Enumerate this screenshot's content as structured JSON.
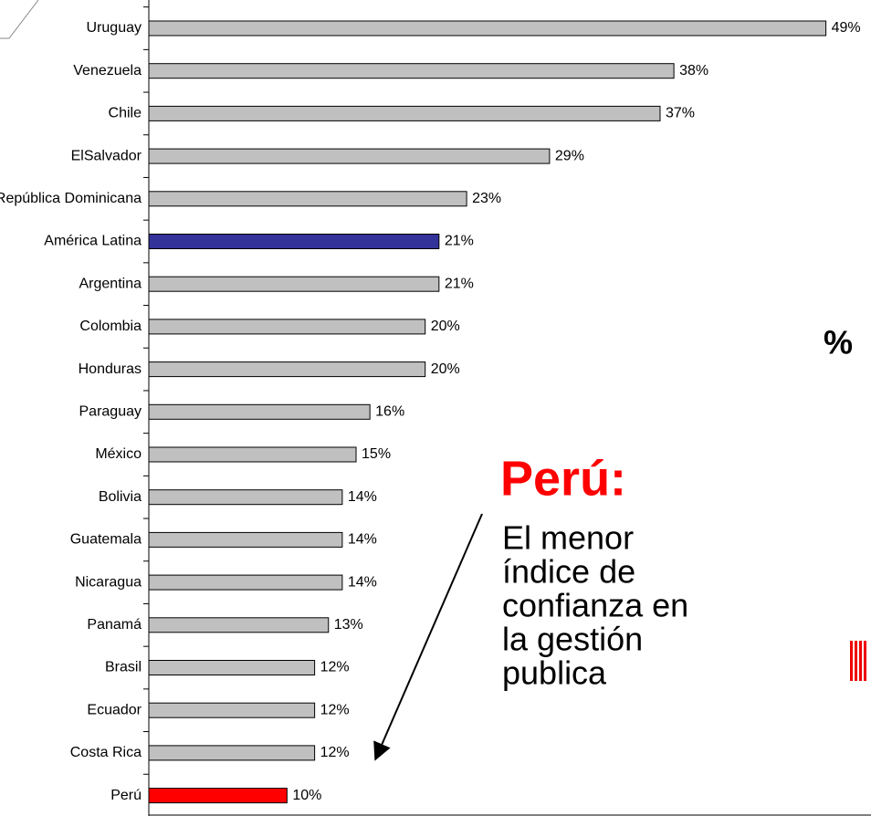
{
  "chart_data": {
    "type": "barh",
    "categories": [
      "Uruguay",
      "Venezuela",
      "Chile",
      "ElSalvador",
      "República Dominicana",
      "América Latina",
      "Argentina",
      "Colombia",
      "Honduras",
      "Paraguay",
      "México",
      "Bolivia",
      "Guatemala",
      "Nicaragua",
      "Panamá",
      "Brasil",
      "Ecuador",
      "Costa Rica",
      "Perú"
    ],
    "values": [
      49,
      38,
      37,
      29,
      23,
      21,
      21,
      20,
      20,
      16,
      15,
      14,
      14,
      14,
      13,
      12,
      12,
      12,
      10
    ],
    "value_labels": [
      "49%",
      "38%",
      "37%",
      "29%",
      "23%",
      "21%",
      "21%",
      "20%",
      "20%",
      "16%",
      "15%",
      "14%",
      "14%",
      "14%",
      "13%",
      "12%",
      "12%",
      "12%",
      "10%"
    ],
    "colors": [
      "#c0c0c0",
      "#c0c0c0",
      "#c0c0c0",
      "#c0c0c0",
      "#c0c0c0",
      "#333399",
      "#c0c0c0",
      "#c0c0c0",
      "#c0c0c0",
      "#c0c0c0",
      "#c0c0c0",
      "#c0c0c0",
      "#c0c0c0",
      "#c0c0c0",
      "#c0c0c0",
      "#c0c0c0",
      "#c0c0c0",
      "#c0c0c0",
      "#ff0000"
    ],
    "xlim": [
      0,
      52
    ],
    "unit_label": "%",
    "annotation_title": "Perú:",
    "annotation_lines": [
      "El menor",
      "índice de",
      "confianza en",
      "la gestión",
      "publica"
    ]
  }
}
